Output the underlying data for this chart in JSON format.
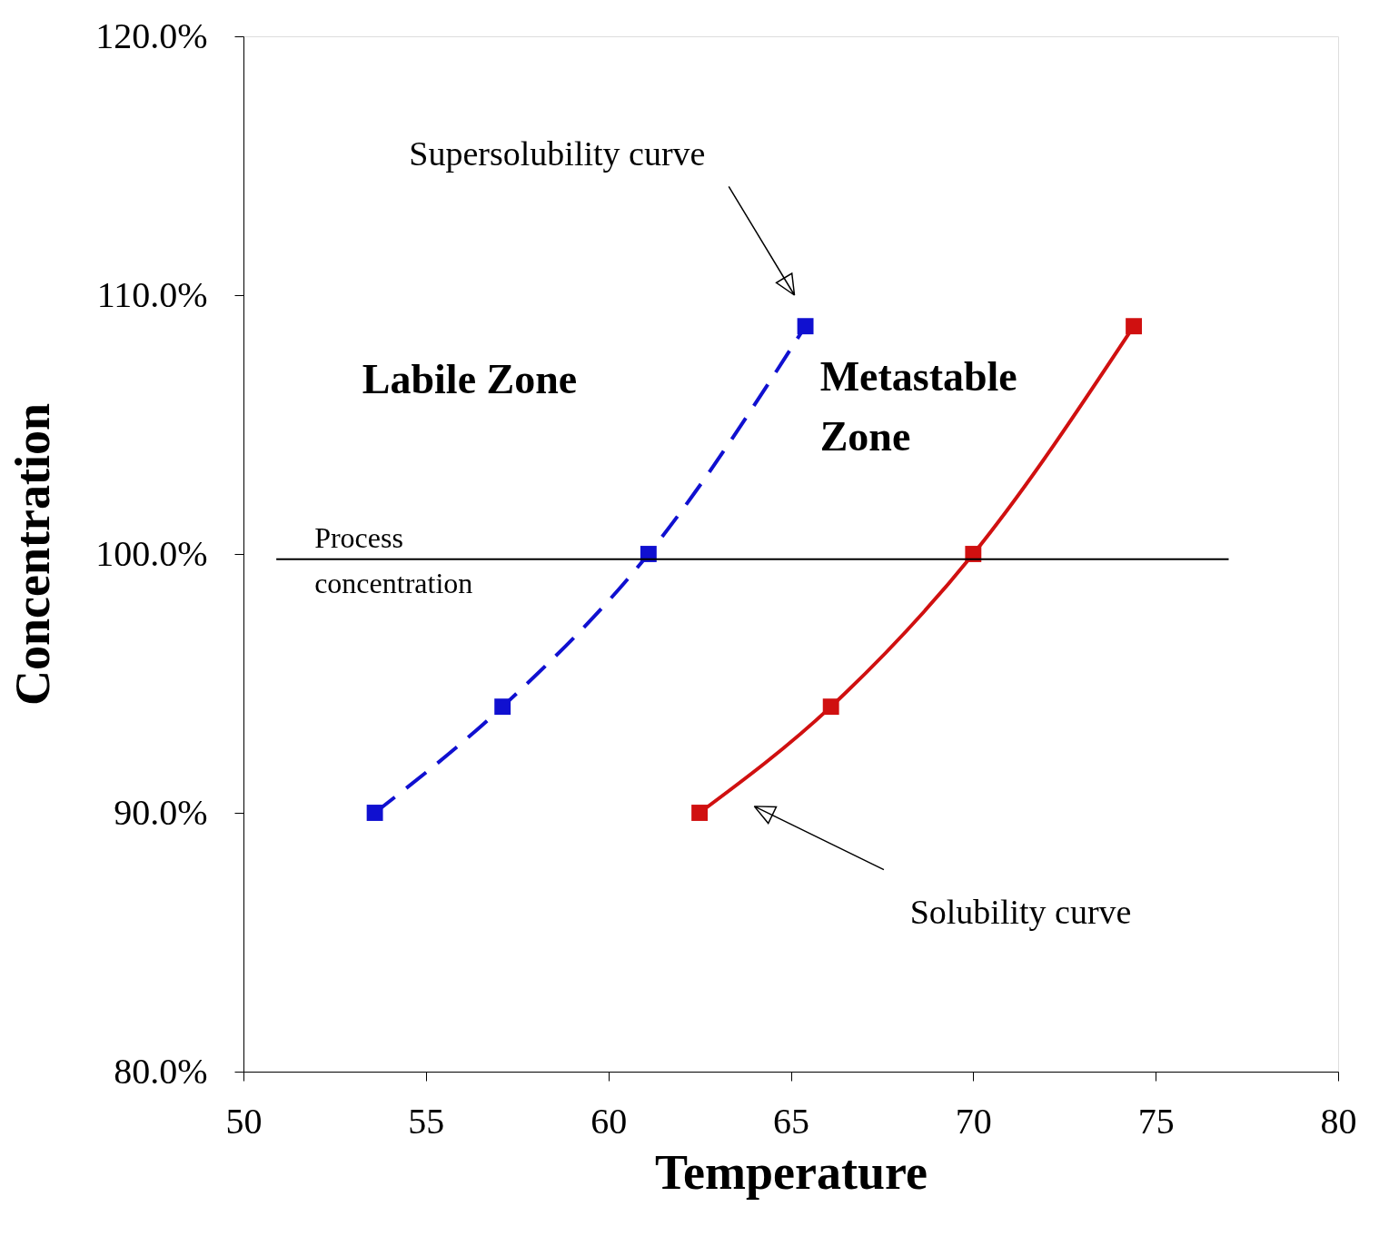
{
  "chart_data": {
    "type": "line",
    "xlabel": "Temperature",
    "ylabel": "Concentration",
    "xlim": [
      50,
      80
    ],
    "xticks": [
      50,
      55,
      60,
      65,
      70,
      75,
      80
    ],
    "ylim": [
      80,
      120
    ],
    "yticks": [
      {
        "value": 80,
        "label": "80.0%"
      },
      {
        "value": 90,
        "label": "90.0%"
      },
      {
        "value": 100,
        "label": "100.0%"
      },
      {
        "value": 110,
        "label": "110.0%"
      },
      {
        "value": 120,
        "label": "120.0%"
      }
    ],
    "grid": false,
    "marker": "square",
    "series": [
      {
        "color": "#1010d0",
        "line_style": "dashed",
        "x": [
          53.6,
          57.1,
          61.1,
          65.4
        ],
        "values": [
          90.0,
          94.1,
          100.0,
          108.8
        ]
      },
      {
        "color": "#d01010",
        "line_style": "solid",
        "x": [
          62.5,
          66.1,
          70.0,
          74.4
        ],
        "values": [
          90.0,
          94.1,
          100.0,
          108.8
        ]
      },
      {
        "name": "Process concentration",
        "color": "#000000",
        "line_style": "solid",
        "marker": "none",
        "x": [
          50.9,
          77.0
        ],
        "values": [
          99.8,
          99.8
        ]
      }
    ],
    "annotations": [
      "Supersolubility curve",
      "Solubility curve",
      "Labile Zone",
      "Metastable Zone"
    ]
  }
}
